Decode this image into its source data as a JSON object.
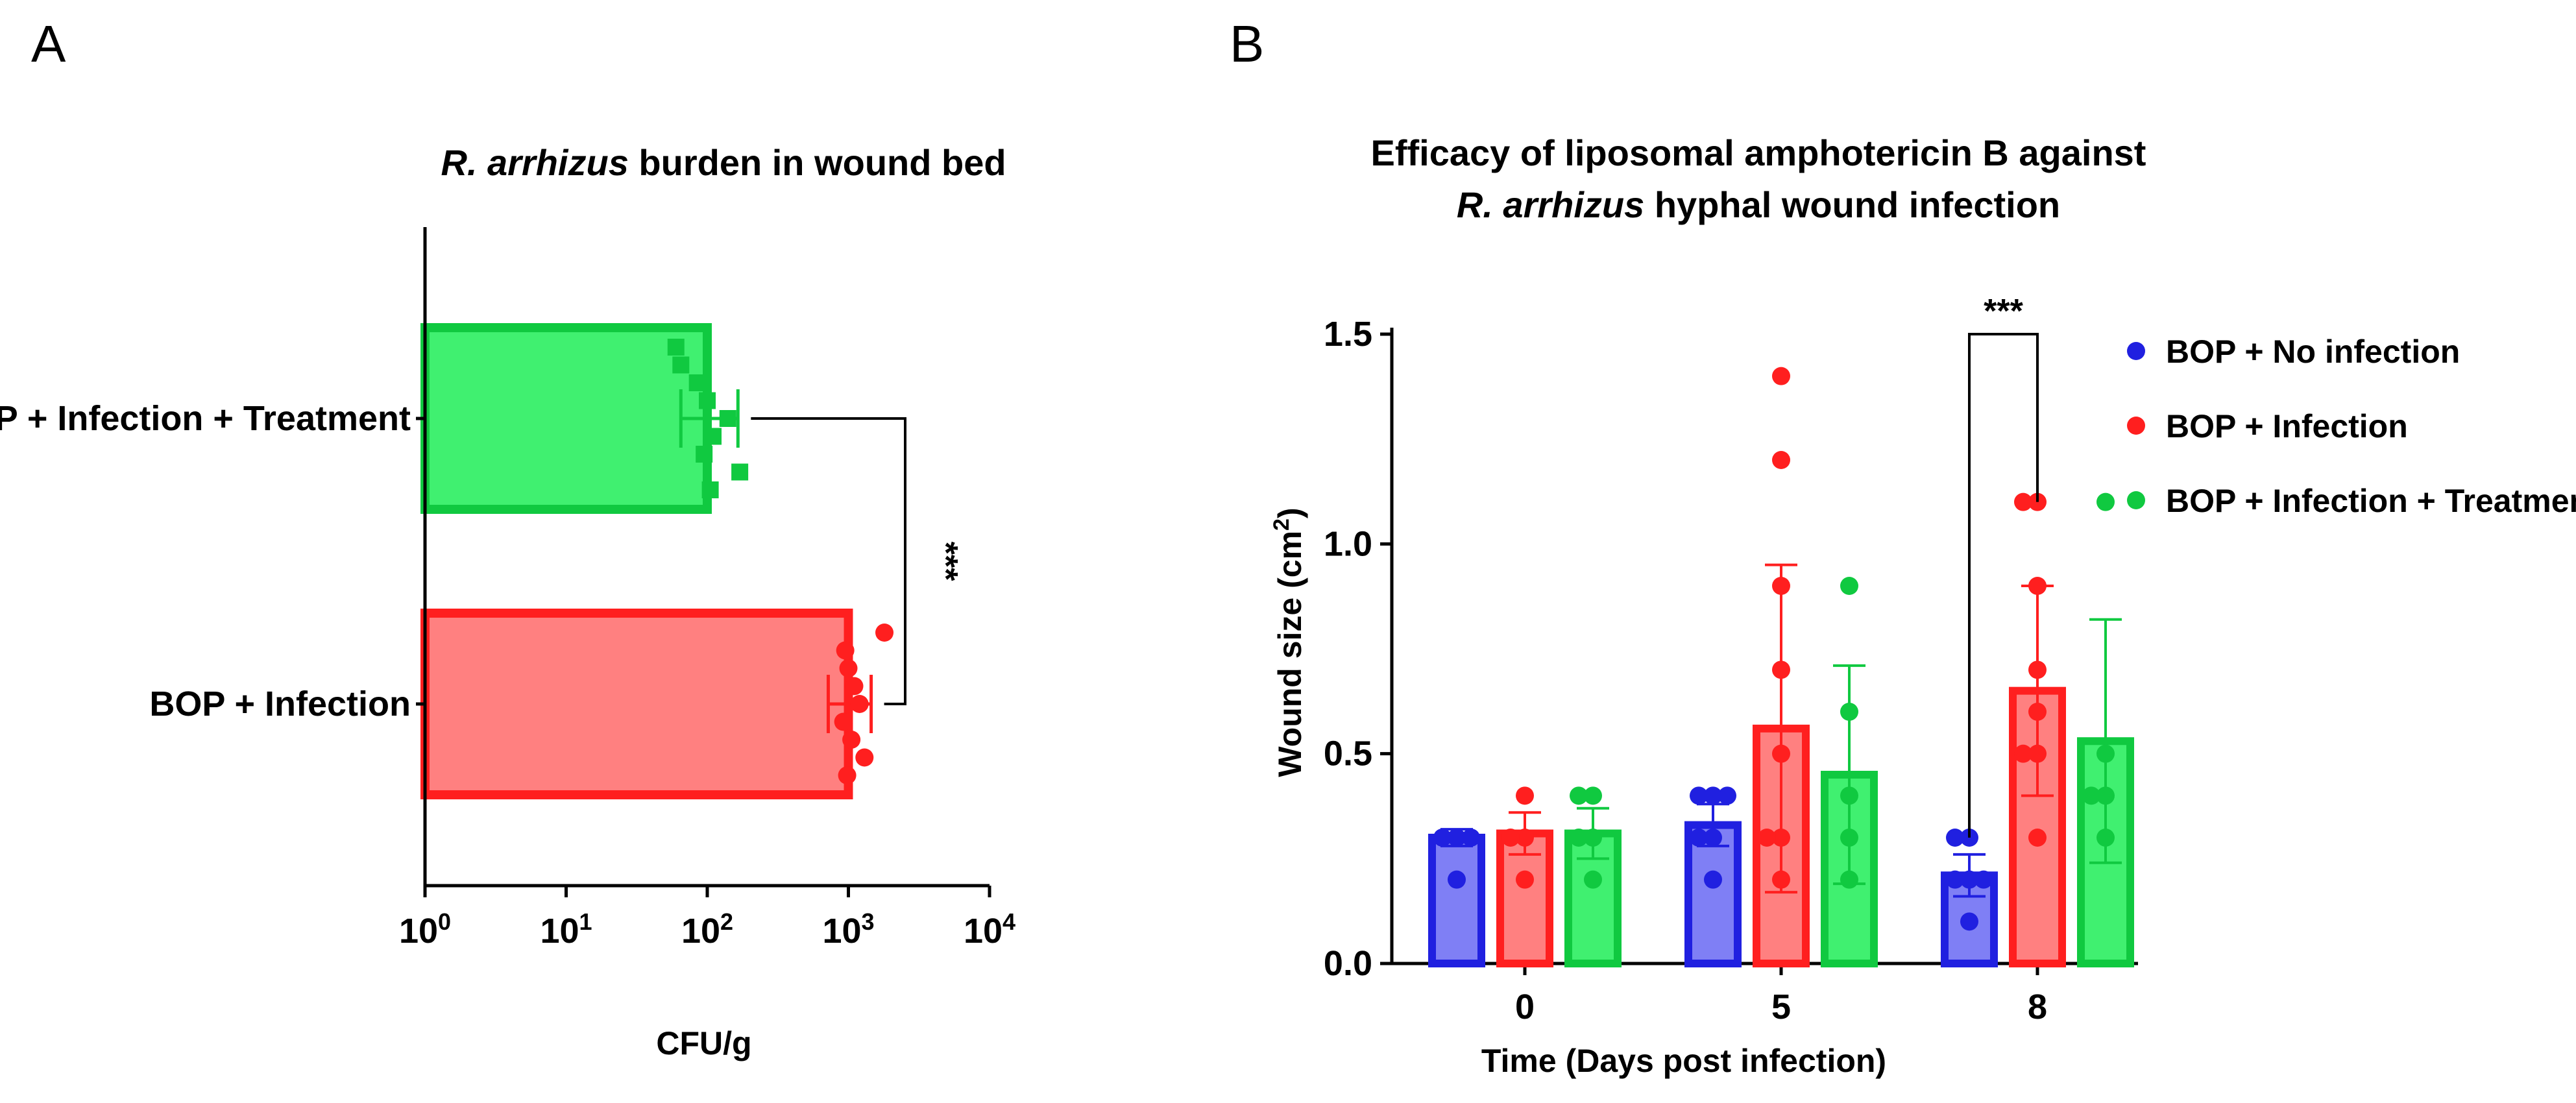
{
  "panels": {
    "a": "A",
    "b": "B"
  },
  "colors": {
    "blue": "#2020e0",
    "blue_fill": "#7f7ff5",
    "red": "#ff1f1f",
    "red_fill": "#ff8080",
    "green": "#10c940",
    "green_fill": "#40f070",
    "axis": "#000000"
  },
  "chart_data": [
    {
      "type": "bar",
      "orientation": "horizontal",
      "title_italic": "R. arrhizus",
      "title_rest": " burden in wound bed",
      "xlabel": "CFU/g",
      "xscale": "log10",
      "xlim": [
        1,
        10000
      ],
      "x_ticks": [
        {
          "base": "10",
          "exp": "0",
          "value": 1
        },
        {
          "base": "10",
          "exp": "1",
          "value": 10
        },
        {
          "base": "10",
          "exp": "2",
          "value": 100
        },
        {
          "base": "10",
          "exp": "3",
          "value": 1000
        },
        {
          "base": "10",
          "exp": "4",
          "value": 10000
        }
      ],
      "categories": [
        "BOP + Infection + Treatment",
        "BOP + Infection"
      ],
      "bars": [
        {
          "label": "BOP + Infection + Treatment",
          "color_key": "green",
          "value": 100,
          "err_lo": 65,
          "err_hi": 165,
          "points": [
            60,
            65,
            85,
            100,
            140,
            110,
            95,
            170,
            105
          ]
        },
        {
          "label": "BOP + Infection",
          "color_key": "red",
          "value": 1000,
          "err_lo": 720,
          "err_hi": 1450,
          "points": [
            1800,
            950,
            1000,
            1100,
            1200,
            920,
            1050,
            1300,
            980
          ]
        }
      ],
      "significance": {
        "text": "***",
        "between": [
          "BOP + Infection + Treatment",
          "BOP + Infection"
        ]
      }
    },
    {
      "type": "bar",
      "title_line1": "Efficacy of liposomal amphotericin B against",
      "title_line2_italic": "R. arrhizus",
      "title_line2_rest": " hyphal wound infection",
      "xlabel": "Time (Days post infection)",
      "ylabel_main": "Wound size (cm",
      "ylabel_sup": "2",
      "ylabel_end": ")",
      "categories": [
        "0",
        "5",
        "8"
      ],
      "ylim": [
        0,
        1.5
      ],
      "y_ticks": [
        "0.0",
        "0.5",
        "1.0",
        "1.5"
      ],
      "series": [
        {
          "name": "BOP + No infection",
          "color_key": "blue",
          "values": [
            0.3,
            0.33,
            0.21
          ],
          "errors": [
            0.02,
            0.05,
            0.05
          ],
          "points": [
            [
              0.3,
              0.3,
              0.3,
              0.3,
              0.2,
              0.3
            ],
            [
              0.4,
              0.4,
              0.4,
              0.3,
              0.3,
              0.2
            ],
            [
              0.3,
              0.3,
              0.2,
              0.2,
              0.2,
              0.1
            ]
          ]
        },
        {
          "name": "BOP + Infection",
          "color_key": "red",
          "values": [
            0.31,
            0.56,
            0.65
          ],
          "errors": [
            0.05,
            0.39,
            0.25
          ],
          "points": [
            [
              0.4,
              0.3,
              0.3,
              0.2
            ],
            [
              1.4,
              1.2,
              0.9,
              0.7,
              0.5,
              0.3,
              0.3,
              0.2
            ],
            [
              1.1,
              1.1,
              0.9,
              0.7,
              0.6,
              0.5,
              0.5,
              0.3
            ]
          ]
        },
        {
          "name": "BOP + Infection + Treatment",
          "color_key": "green",
          "values": [
            0.31,
            0.45,
            0.53
          ],
          "errors": [
            0.06,
            0.26,
            0.29
          ],
          "points": [
            [
              0.4,
              0.4,
              0.3,
              0.2,
              0.3
            ],
            [
              0.9,
              0.6,
              0.4,
              0.3,
              0.2
            ],
            [
              1.1,
              0.5,
              0.4,
              0.3,
              0.4
            ]
          ]
        }
      ],
      "legend_position": "top-right",
      "significance": {
        "text": "***",
        "category": "8",
        "between": [
          "BOP + No infection",
          "BOP + Infection"
        ]
      }
    }
  ]
}
